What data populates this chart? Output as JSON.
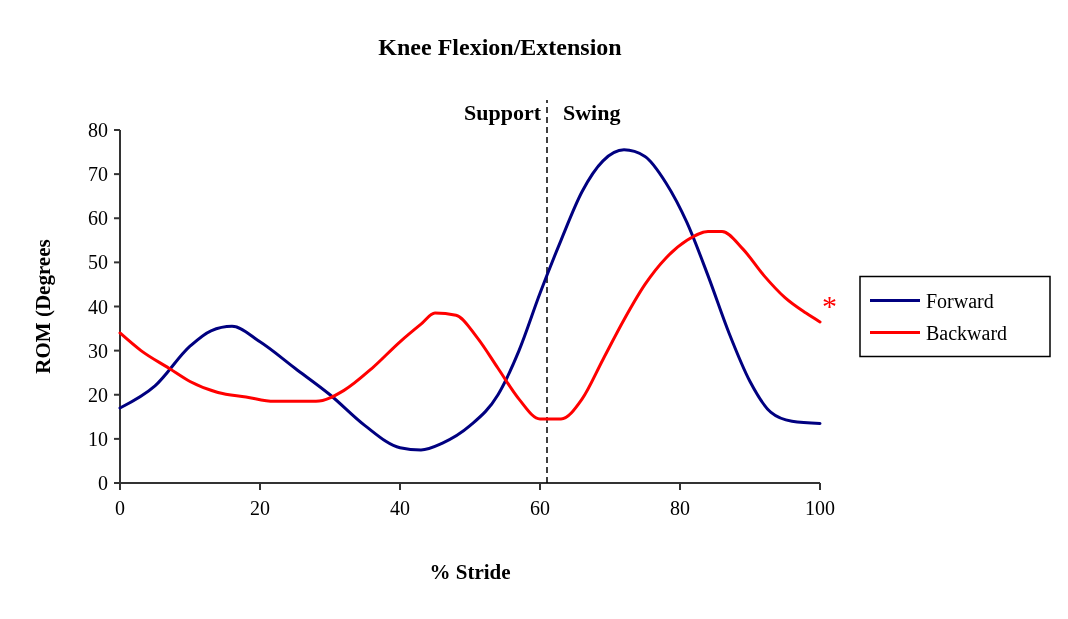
{
  "chart_data": {
    "type": "line",
    "title": "Knee Flexion/Extension",
    "xlabel": "% Stride",
    "ylabel": "ROM (Degrees",
    "xlim": [
      0,
      100
    ],
    "xticks": [
      0,
      20,
      40,
      60,
      80,
      100
    ],
    "ylim": [
      0,
      80
    ],
    "yticks": [
      0,
      10,
      20,
      30,
      40,
      50,
      60,
      70,
      80
    ],
    "legend": "right",
    "grid": false,
    "line_style": "solid",
    "marker": "none",
    "series": [
      {
        "name": "Forward",
        "color": "#000080",
        "x": [
          0,
          5,
          10,
          13,
          16,
          20,
          25,
          30,
          35,
          40,
          43,
          46,
          50,
          54,
          57,
          60,
          63,
          66,
          69,
          72,
          75,
          78,
          81,
          84,
          87,
          90,
          93,
          96,
          100
        ],
        "values": [
          17,
          22,
          31,
          34.5,
          35.5,
          32,
          26,
          20,
          13,
          8,
          7.5,
          9,
          13,
          20,
          30,
          43,
          55,
          66,
          73,
          75.5,
          74,
          68,
          59,
          47,
          34,
          23,
          16,
          14,
          13.5
        ]
      },
      {
        "name": "Backward",
        "color": "#ff0000",
        "x": [
          0,
          3,
          7,
          10,
          14,
          18,
          22,
          28,
          32,
          36,
          40,
          43,
          45,
          48,
          51,
          54,
          57,
          60,
          63,
          66,
          69,
          72,
          75,
          78,
          81,
          84,
          86,
          89,
          92,
          95,
          98,
          100
        ],
        "values": [
          34,
          30,
          26,
          23,
          20.5,
          19.5,
          18.5,
          18.5,
          21,
          26,
          32,
          36,
          38.5,
          38,
          33,
          26,
          19,
          14.5,
          14.5,
          19,
          28,
          37,
          45,
          51,
          55,
          57,
          57,
          53,
          47,
          42,
          38.5,
          36.5
        ]
      }
    ],
    "ref_lines": [
      {
        "axis": "x",
        "value": 61,
        "line_style": "dashed",
        "color": "#000000"
      }
    ],
    "annotations": [
      "Support",
      "Swing",
      "*"
    ]
  }
}
